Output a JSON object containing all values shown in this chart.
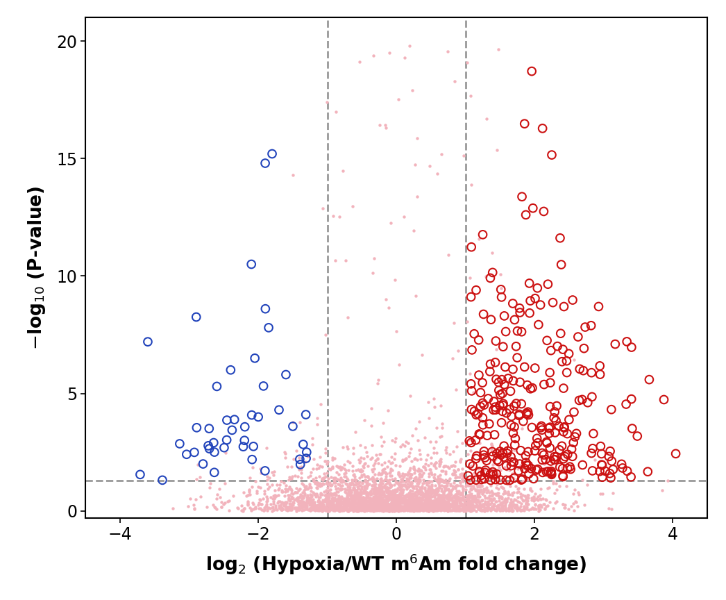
{
  "xlim": [
    -4.5,
    4.5
  ],
  "ylim": [
    -0.3,
    21
  ],
  "xticks": [
    -4,
    -2,
    0,
    2,
    4
  ],
  "yticks": [
    0,
    5,
    10,
    15,
    20
  ],
  "xlabel": "log$_2$ (Hypoxia/WT m$^6$Am fold change)",
  "ylabel": "$-$log$_{10}$ (P-value)",
  "vline1": -1.0,
  "vline2": 1.0,
  "hline": 1.3,
  "background_color": "#ffffff",
  "color_bg_dots": "#f2b3bc",
  "color_up": "#cc1111",
  "color_down": "#2244bb",
  "seed": 42,
  "xlabel_fontsize": 19,
  "ylabel_fontsize": 19,
  "tick_fontsize": 17
}
